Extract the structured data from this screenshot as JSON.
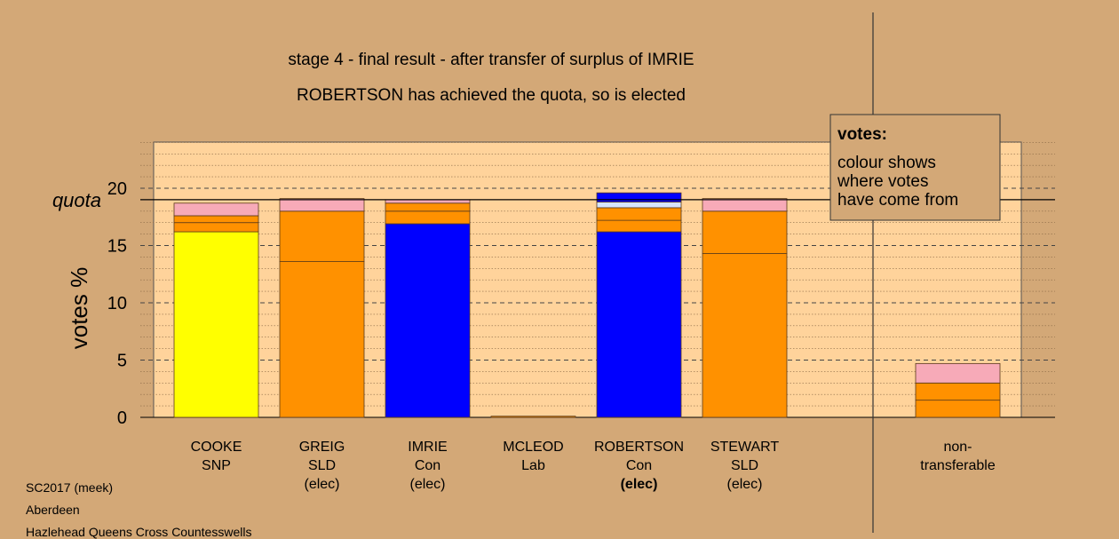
{
  "chart_data": {
    "type": "bar",
    "stacked": true,
    "title": "stage 4 - final result - after transfer of surplus of IMRIE",
    "subtitle": "ROBERTSON has achieved the quota, so is elected",
    "ylabel": "votes %",
    "quota_label": "quota",
    "quota": 19.0,
    "ylim": [
      0,
      24.5
    ],
    "yticks": [
      0,
      5,
      10,
      15,
      20
    ],
    "grid": "dashed horizontal",
    "legend": {
      "placement": "top-right",
      "title": "votes:",
      "lines": [
        "colour shows",
        "where votes",
        "have come from"
      ]
    },
    "colors": {
      "yellow": "#ffff00",
      "orange": "#ff9100",
      "blue": "#0000ff",
      "pink": "#f7aab8",
      "light_blue": "#d6e4ff",
      "panel": "#ffd39b",
      "background": "#d3a877"
    },
    "candidates": [
      {
        "name": "COOKE",
        "party": "SNP",
        "status": "",
        "segments": [
          {
            "value": 16.2,
            "color": "#ffff00"
          },
          {
            "value": 0.8,
            "color": "#ff9100"
          },
          {
            "value": 0.6,
            "color": "#ff9100"
          },
          {
            "value": 1.1,
            "color": "#f7aab8"
          }
        ]
      },
      {
        "name": "GREIG",
        "party": "SLD",
        "status": "(elec)",
        "segments": [
          {
            "value": 13.6,
            "color": "#ff9100"
          },
          {
            "value": 4.4,
            "color": "#ff9100"
          },
          {
            "value": 1.1,
            "color": "#f7aab8"
          }
        ]
      },
      {
        "name": "IMRIE",
        "party": "Con",
        "status": "(elec)",
        "segments": [
          {
            "value": 16.9,
            "color": "#0000ff"
          },
          {
            "value": 1.1,
            "color": "#ff9100"
          },
          {
            "value": 0.7,
            "color": "#ff9100"
          },
          {
            "value": 0.3,
            "color": "#f7aab8"
          }
        ]
      },
      {
        "name": "MCLEOD",
        "party": "Lab",
        "status": "",
        "segments": [
          {
            "value": 0.1,
            "color": "#ff9100"
          }
        ]
      },
      {
        "name": "ROBERTSON",
        "party": "Con",
        "status": "(elec)",
        "status_bold": true,
        "segments": [
          {
            "value": 16.2,
            "color": "#0000ff"
          },
          {
            "value": 1.0,
            "color": "#ff9100"
          },
          {
            "value": 1.1,
            "color": "#ff9100"
          },
          {
            "value": 0.5,
            "color": "#d6e4ff"
          },
          {
            "value": 0.8,
            "color": "#0000ff"
          }
        ]
      },
      {
        "name": "STEWART",
        "party": "SLD",
        "status": "(elec)",
        "segments": [
          {
            "value": 14.3,
            "color": "#ff9100"
          },
          {
            "value": 3.7,
            "color": "#ff9100"
          },
          {
            "value": 1.1,
            "color": "#f7aab8"
          }
        ]
      }
    ],
    "nontransferable": {
      "label_line1": "non-",
      "label_line2": "transferable",
      "segments": [
        {
          "value": 1.5,
          "color": "#ff9100"
        },
        {
          "value": 1.5,
          "color": "#ff9100"
        },
        {
          "value": 1.7,
          "color": "#f7aab8"
        }
      ]
    }
  },
  "footer": {
    "line1": "SC2017 (meek)",
    "line2": "Aberdeen",
    "line3": "Hazlehead Queens Cross Countesswells"
  }
}
